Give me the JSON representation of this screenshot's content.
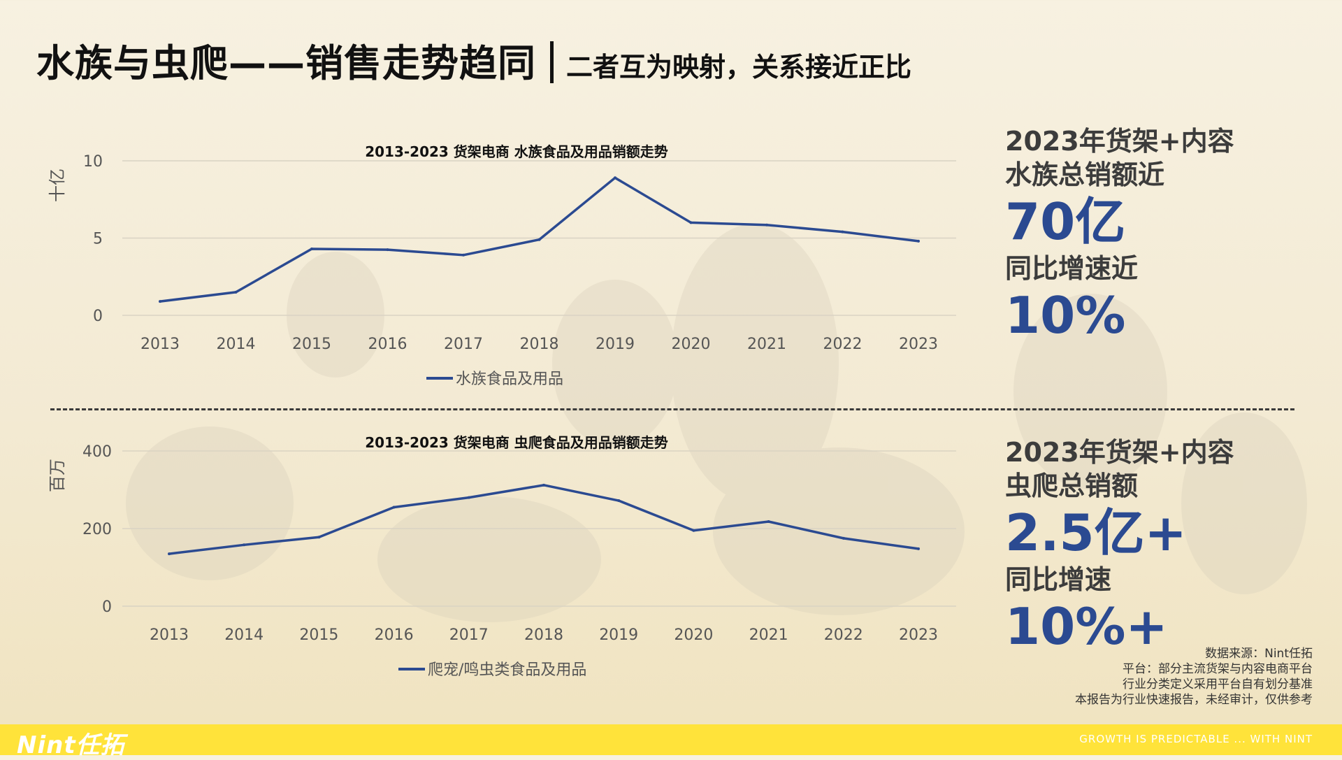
{
  "header": {
    "title": "水族与虫爬——销售走势趋同",
    "subtitle": "二者互为映射，关系接近正比"
  },
  "chart_data": [
    {
      "type": "line",
      "title": "2013-2023 货架电商 水族食品及用品销额走势",
      "ylabel": "十亿",
      "categories": [
        "2013",
        "2014",
        "2015",
        "2016",
        "2017",
        "2018",
        "2019",
        "2020",
        "2021",
        "2022",
        "2023"
      ],
      "series": [
        {
          "name": "水族食品及用品",
          "values": [
            0.9,
            1.5,
            4.3,
            4.25,
            3.9,
            4.9,
            8.9,
            6.0,
            5.85,
            5.4,
            4.8
          ]
        }
      ],
      "ylim": [
        0,
        10
      ],
      "yticks": [
        0,
        5,
        10
      ],
      "grid": true,
      "legend": "bottom",
      "color": "#2b4a91"
    },
    {
      "type": "line",
      "title": "2013-2023 货架电商 虫爬食品及用品销额走势",
      "ylabel": "百万",
      "categories": [
        "2013",
        "2014",
        "2015",
        "2016",
        "2017",
        "2018",
        "2019",
        "2020",
        "2021",
        "2022",
        "2023"
      ],
      "series": [
        {
          "name": "爬宠/鸣虫类食品及用品",
          "values": [
            135,
            158,
            178,
            255,
            280,
            312,
            272,
            195,
            218,
            175,
            148
          ]
        }
      ],
      "ylim": [
        0,
        400
      ],
      "yticks": [
        0,
        200,
        400
      ],
      "grid": true,
      "legend": "bottom",
      "color": "#2b4a91"
    }
  ],
  "stats": {
    "aquarium": {
      "label1": "2023年货架+内容",
      "label2": "水族总销额近",
      "value1": "70亿",
      "label3": "同比增速近",
      "value2": "10%"
    },
    "reptile": {
      "label1": "2023年货架+内容",
      "label2": "虫爬总销额",
      "value1": "2.5亿+",
      "label3": "同比增速",
      "value2": "10%+"
    }
  },
  "notes": [
    "数据来源：Nint任拓",
    "平台：部分主流货架与内容电商平台",
    "行业分类定义采用平台自有划分基准",
    "本报告为行业快速报告，未经审计，仅供参考"
  ],
  "footer": {
    "logo": "Nint任拓",
    "slogan": "GROWTH IS PREDICTABLE ... WITH NINT"
  },
  "colors": {
    "accent": "#2b4a91",
    "footer": "#ffe33a"
  }
}
